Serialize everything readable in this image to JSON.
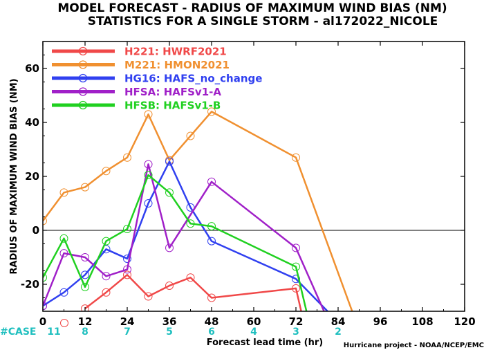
{
  "chart_data": {
    "type": "line",
    "title": "MODEL FORECAST - RADIUS OF MAXIMUM WIND BIAS (NM)",
    "subtitle": "STATISTICS FOR A SINGLE STORM - al172022_NICOLE",
    "xlabel": "Forecast lead time (hr)",
    "ylabel": "RADIUS OF MAXIMUM WIND BIAS (NM)",
    "xlim": [
      0,
      120
    ],
    "ylim": [
      -30,
      70
    ],
    "xticks": [
      "0",
      "12",
      "24",
      "36",
      "48",
      "60",
      "72",
      "84",
      "96",
      "108",
      "120"
    ],
    "yticks": [
      "-20",
      "0",
      "20",
      "40",
      "60"
    ],
    "zero_line": true,
    "legend_position": "top-left",
    "series": [
      {
        "name": "H221",
        "label": "HWRF2021",
        "color": "#f04848",
        "x": [
          12,
          18,
          24,
          30,
          36,
          42,
          48,
          72,
          73.5
        ],
        "y": [
          -29,
          -23,
          -16.5,
          -24.5,
          -20.5,
          -17.5,
          -25,
          -21.5,
          -30
        ]
      },
      {
        "name": "M221",
        "label": "HMON2021",
        "color": "#f09030",
        "x": [
          0,
          6,
          12,
          18,
          24,
          30,
          36,
          42,
          48,
          72,
          88
        ],
        "y": [
          3.5,
          14,
          16,
          22,
          27,
          43,
          26,
          35,
          44,
          27,
          -30
        ]
      },
      {
        "name": "HG16",
        "label": "HAFS_no_change",
        "color": "#3040f0",
        "x": [
          0,
          6,
          12,
          18,
          24,
          30,
          36,
          42,
          48,
          72,
          81
        ],
        "y": [
          -28,
          -23,
          -16.5,
          -7,
          -10.5,
          10,
          25.5,
          8.5,
          -4,
          -18,
          -30
        ]
      },
      {
        "name": "HFSA",
        "label": "HAFSv1-A",
        "color": "#a020c8",
        "x": [
          0,
          6,
          12,
          18,
          24,
          30,
          36,
          48,
          72,
          80
        ],
        "y": [
          -28,
          -8.5,
          -10,
          -17,
          -14.5,
          24.5,
          -6.5,
          18,
          -6.5,
          -30
        ]
      },
      {
        "name": "HFSB",
        "label": "HAFSv1-B",
        "color": "#20d020",
        "x": [
          0,
          6,
          12,
          18,
          24,
          30,
          36,
          42,
          48,
          72,
          75
        ],
        "y": [
          -17.5,
          -3,
          -21,
          -4,
          0.5,
          20.5,
          14,
          2.5,
          1.5,
          -13.5,
          -30
        ]
      }
    ],
    "cases": {
      "label": "#CASE",
      "x": [
        0,
        12,
        24,
        36,
        48,
        60,
        72,
        84
      ],
      "values": [
        "11",
        "8",
        "7",
        "5",
        "6",
        "4",
        "3",
        "2"
      ]
    }
  },
  "credit": "Hurricane project - NOAA/NCEP/EMC"
}
